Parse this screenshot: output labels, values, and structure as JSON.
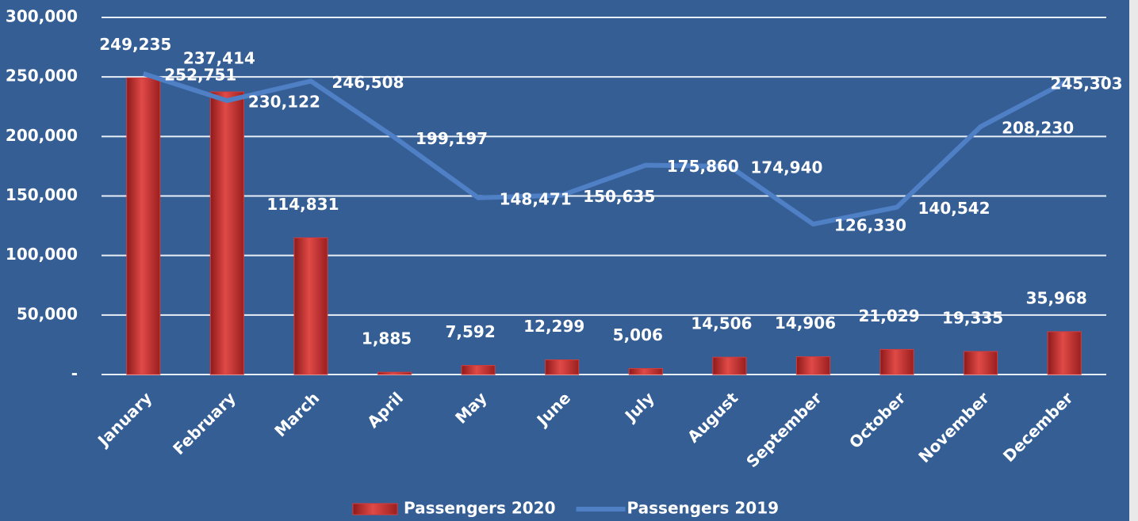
{
  "chart_data": {
    "type": "bar",
    "categories": [
      "January",
      "February",
      "March",
      "April",
      "May",
      "June",
      "July",
      "August",
      "September",
      "October",
      "November",
      "December"
    ],
    "series": [
      {
        "name": "Passengers 2020",
        "type": "bar",
        "color": "#d63c3a",
        "values": [
          249235,
          237414,
          114831,
          1885,
          7592,
          12299,
          5006,
          14506,
          14906,
          21029,
          19335,
          35968
        ],
        "value_labels": [
          "249,235",
          "237,414",
          "114,831",
          "1,885",
          "7,592",
          "12,299",
          "5,006",
          "14,506",
          "14,906",
          "21,029",
          "19,335",
          "35,968"
        ]
      },
      {
        "name": "Passengers 2019",
        "type": "line",
        "color": "#4f7fc4",
        "values": [
          252751,
          230122,
          246508,
          199197,
          148471,
          150635,
          175860,
          174940,
          126330,
          140542,
          208230,
          245303
        ],
        "value_labels": [
          "252,751",
          "230,122",
          "246,508",
          "199,197",
          "148,471",
          "150,635",
          "175,860",
          "174,940",
          "126,330",
          "140,542",
          "208,230",
          "245,303"
        ]
      }
    ],
    "ylim": [
      0,
      300000
    ],
    "yticks": [
      {
        "value": 0,
        "label": "-"
      },
      {
        "value": 50000,
        "label": "50,000"
      },
      {
        "value": 100000,
        "label": "100,000"
      },
      {
        "value": 150000,
        "label": "150,000"
      },
      {
        "value": 200000,
        "label": "200,000"
      },
      {
        "value": 250000,
        "label": "250,000"
      },
      {
        "value": 300000,
        "label": "300,000"
      }
    ],
    "grid": true,
    "legend": "bottom"
  }
}
